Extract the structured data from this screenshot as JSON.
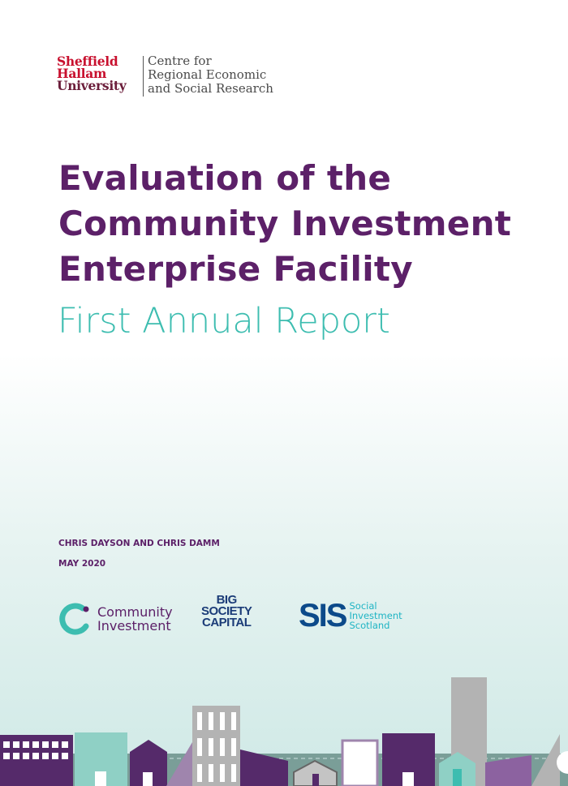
{
  "logo": {
    "university_lines": [
      "Sheffield",
      "Hallam",
      "University"
    ],
    "centre_lines": [
      "Centre for",
      "Regional Economic",
      "and Social Research"
    ]
  },
  "title_lines": [
    "Evaluation of the",
    "Community Investment",
    "Enterprise Facility"
  ],
  "subtitle": "First Annual Report",
  "authors": "CHRIS DAYSON AND CHRIS DAMM",
  "date": "MAY 2020",
  "partners": {
    "community_investment": [
      "Community",
      "Investment"
    ],
    "big_society_capital": [
      "BIG",
      "SOCIETY",
      "CAPITAL"
    ],
    "sis": {
      "mark": "SIS",
      "lines": [
        "Social",
        "Investment",
        "Scotland"
      ]
    }
  },
  "colors": {
    "title": "#5c2068",
    "subtitle": "#3dbdb0",
    "university_red": "#c8102e"
  }
}
